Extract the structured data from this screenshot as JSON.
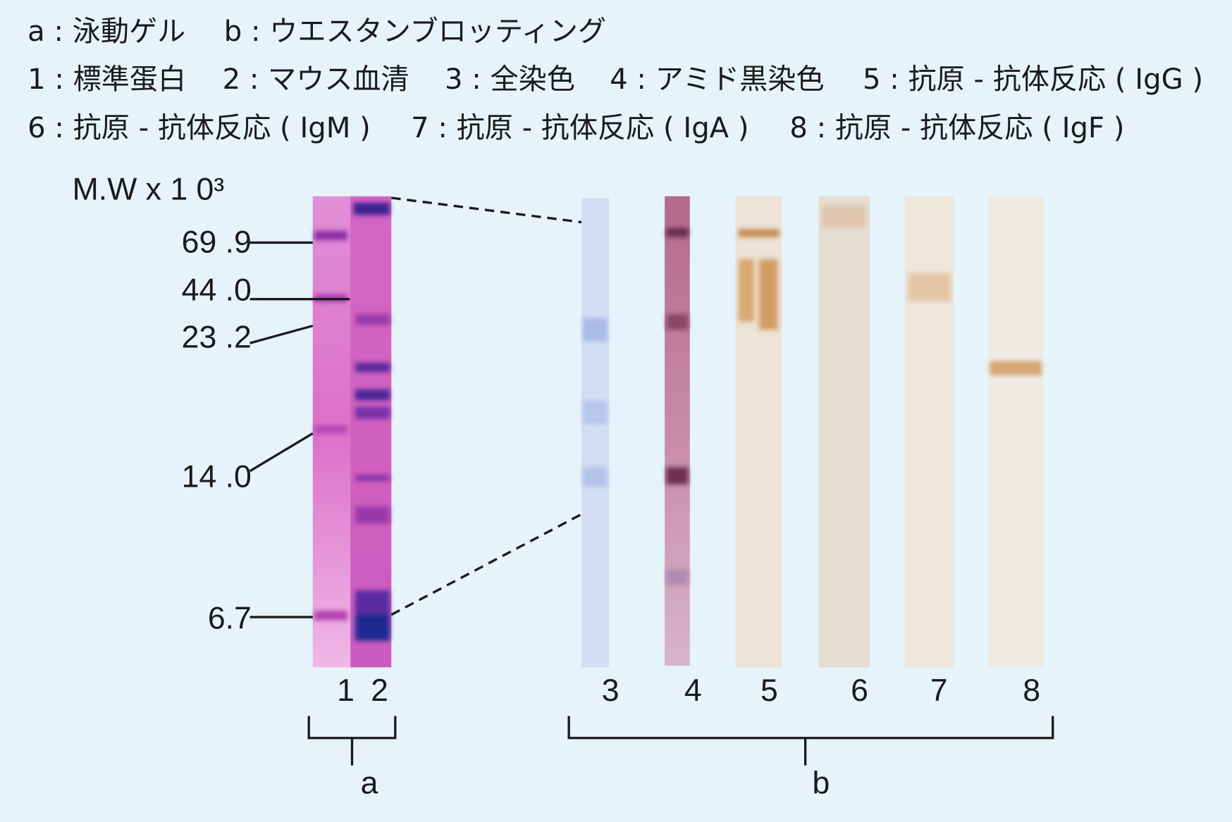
{
  "legend": {
    "rows": [
      [
        "a : 泳動ゲル",
        "b : ウエスタンブロッティング"
      ],
      [
        "1 : 標準蛋白",
        "2 : マウス血清",
        "3 : 全染色",
        "4 : アミド黒染色",
        "5 : 抗原 - 抗体反応 ( IgG )"
      ],
      [
        "6 : 抗原 - 抗体反応 ( IgM )",
        "7 : 抗原 - 抗体反応 ( IgA )",
        "8 : 抗原 - 抗体反応 ( IgF )"
      ]
    ]
  },
  "figure": {
    "mw_label": "M.W x 1 0³",
    "markers": [
      "69 .9",
      "44 .0",
      "23 .2",
      "14 .0",
      "6.7"
    ],
    "lanes": [
      "1",
      "2",
      "3",
      "4",
      "5",
      "6",
      "7",
      "8"
    ],
    "groups": [
      "a",
      "b"
    ]
  }
}
